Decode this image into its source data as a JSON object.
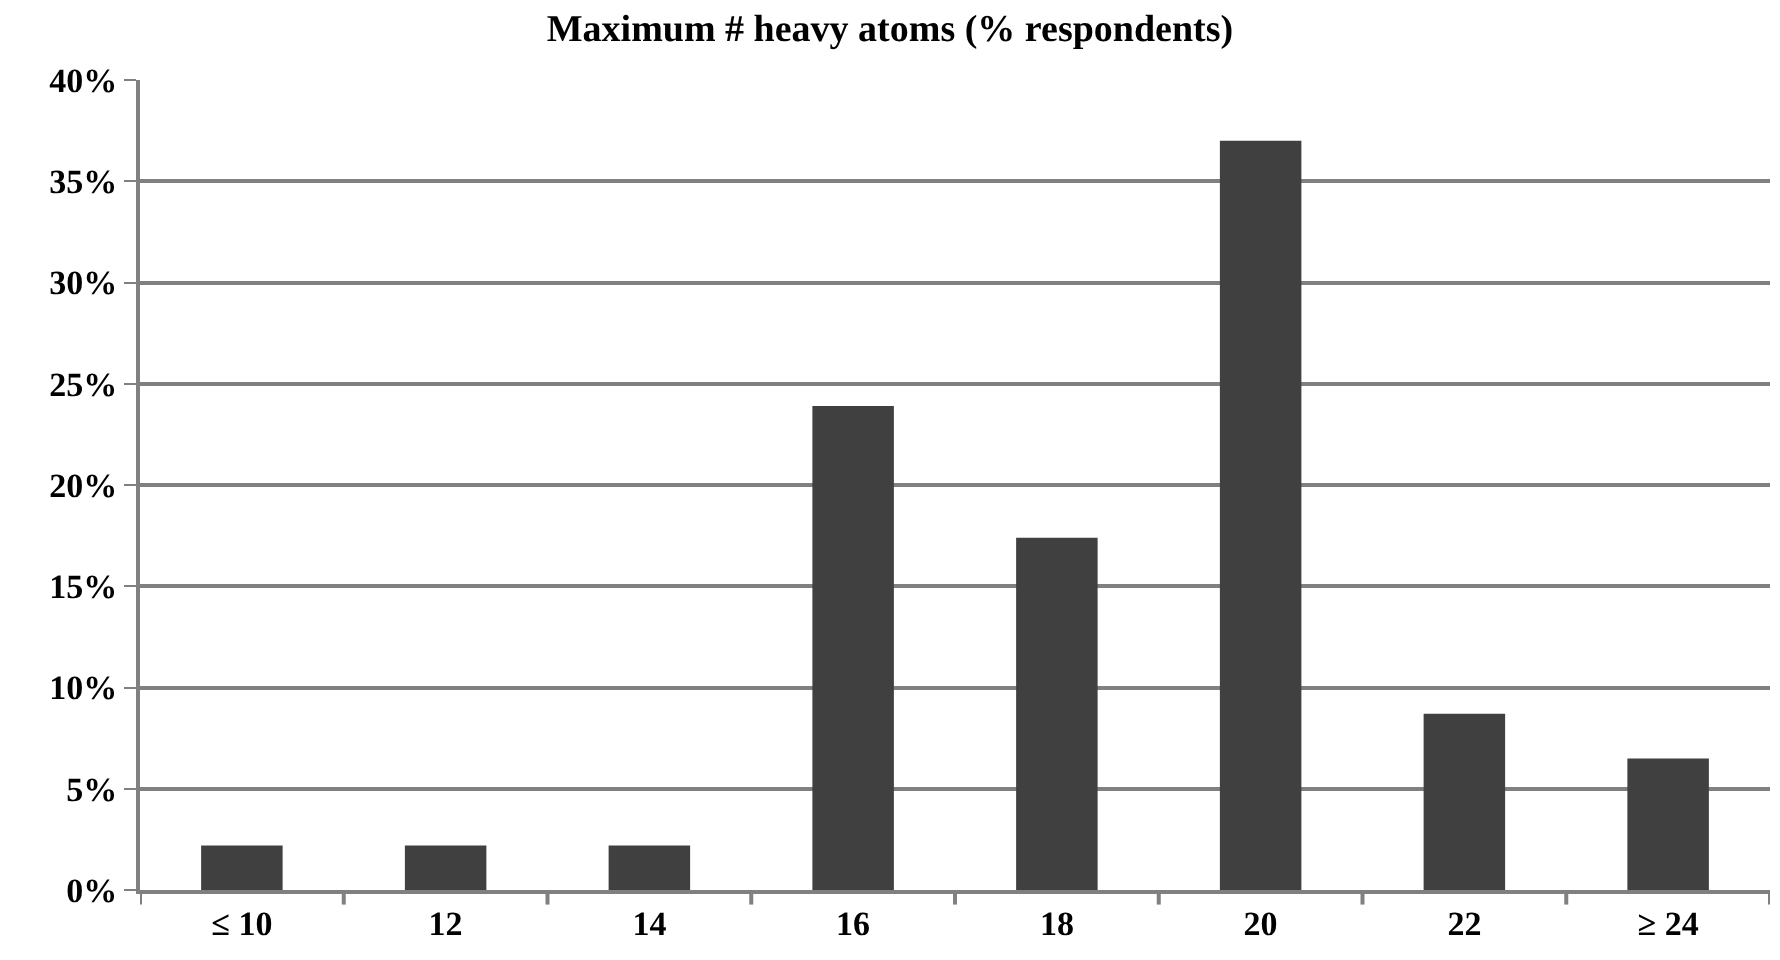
{
  "chart_data": {
    "type": "bar",
    "title": "Maximum # heavy atoms (% respondents)",
    "categories": [
      "≤ 10",
      "12",
      "14",
      "16",
      "18",
      "20",
      "22",
      "≥ 24"
    ],
    "values": [
      2.2,
      2.2,
      2.2,
      23.9,
      17.4,
      37.0,
      8.7,
      6.5
    ],
    "color": "#404040",
    "ylim": [
      0,
      40
    ],
    "yticks": [
      {
        "value": 0,
        "label": "0%"
      },
      {
        "value": 5,
        "label": "5%"
      },
      {
        "value": 10,
        "label": "10%"
      },
      {
        "value": 15,
        "label": "15%"
      },
      {
        "value": 20,
        "label": "20%"
      },
      {
        "value": 25,
        "label": "25%"
      },
      {
        "value": 30,
        "label": "30%"
      },
      {
        "value": 35,
        "label": "35%"
      },
      {
        "value": 40,
        "label": "40%"
      }
    ],
    "grid": "y"
  }
}
